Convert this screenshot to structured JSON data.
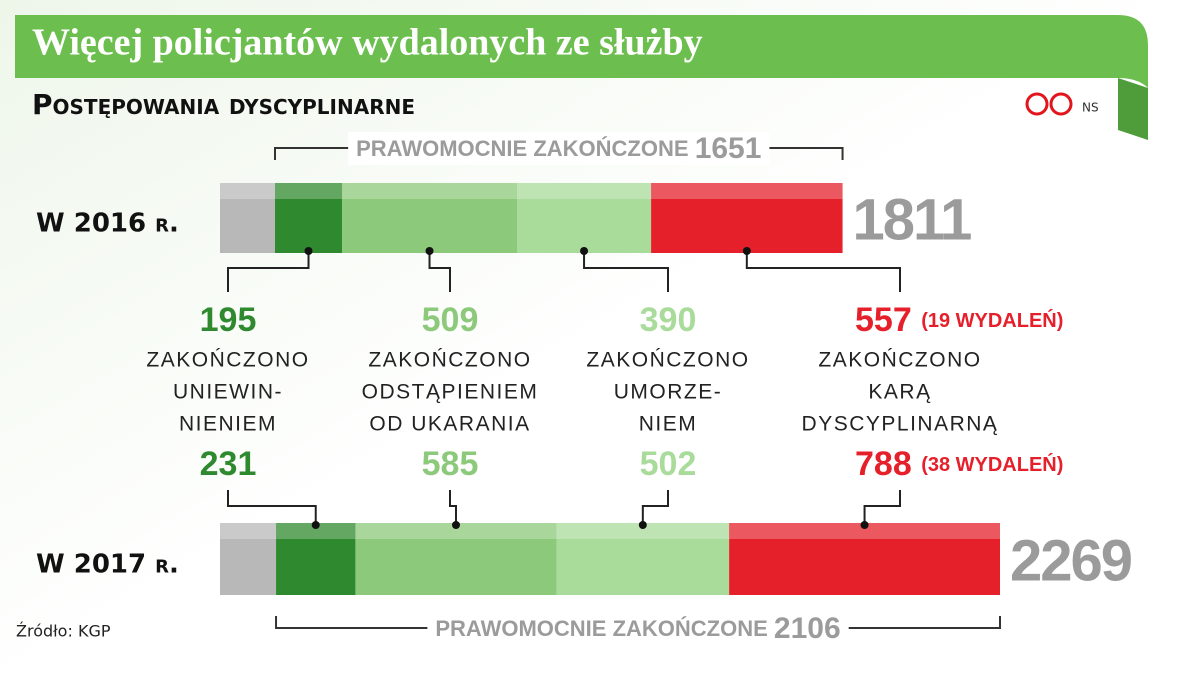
{
  "chart_data": {
    "type": "bar",
    "title": "Więcej policjantów wydalonych ze służby",
    "subtitle": "Postępowania dyscyplinarne",
    "credit": "NS",
    "source": "Źródło: KGP",
    "categories": [
      "W 2016 r.",
      "W 2017 r."
    ],
    "totals": [
      1811,
      2269
    ],
    "finalized": {
      "label": "PRAWOMOCNIE ZAKOŃCZONE",
      "values": [
        1651,
        2106
      ]
    },
    "series": [
      {
        "color": "#b8b8b8",
        "values": [
          160,
          163
        ]
      },
      {
        "name": [
          "ZAKOŃCZONO",
          "UNIEWIN-",
          "NIENIEM"
        ],
        "color": "#2f8a2f",
        "values": [
          195,
          231
        ]
      },
      {
        "name": [
          "ZAKOŃCZONO",
          "ODSTĄPIENIEM",
          "OD UKARANIA"
        ],
        "color": "#8cc97a",
        "values": [
          509,
          585
        ]
      },
      {
        "name": [
          "ZAKOŃCZONO",
          "UMORZE-",
          "NIEM"
        ],
        "color": "#a9db9b",
        "values": [
          390,
          502
        ]
      },
      {
        "name": [
          "ZAKOŃCZONO",
          "KARĄ",
          "DYSCYPLINARNĄ"
        ],
        "color": "#e5202a",
        "values": [
          557,
          788
        ],
        "notes": [
          "(19 WYDALEŃ)",
          "(38 WYDALEŃ)"
        ]
      }
    ]
  }
}
